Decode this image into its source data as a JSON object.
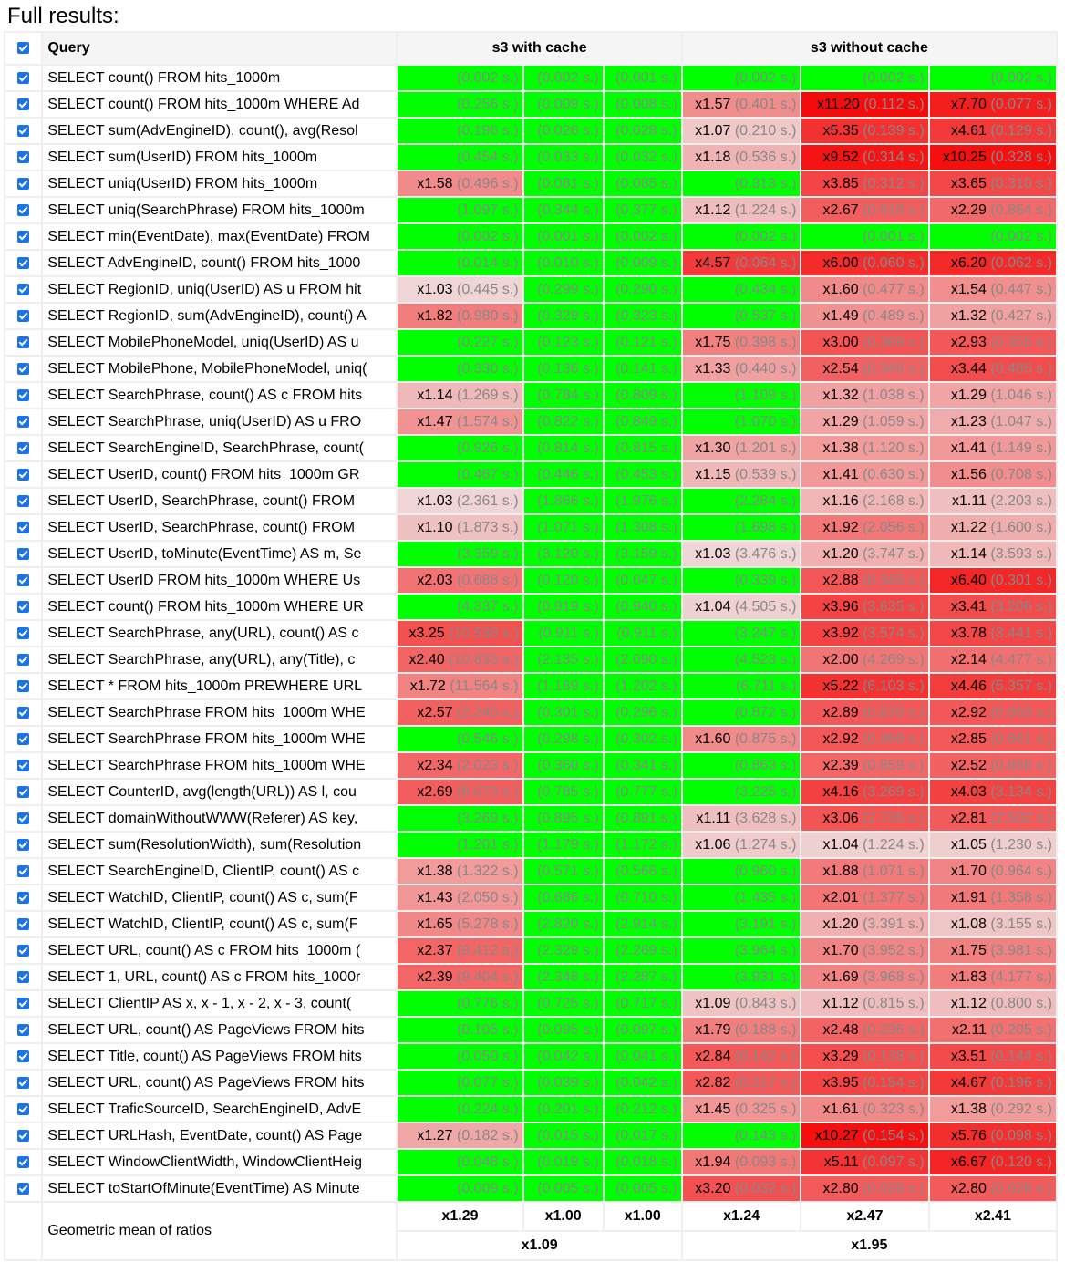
{
  "title": "Full results:",
  "header": {
    "query": "Query",
    "group1": "s3 with cache",
    "group2": "s3 without cache"
  },
  "colors": {
    "best": "#00ff00",
    "worst": "#ff0000",
    "neutral": "#eeeeee",
    "checkbox": "#1a73e8"
  },
  "rows": [
    {
      "query": "SELECT count() FROM hits_1000m",
      "cells": [
        [
          "",
          "0.002"
        ],
        [
          "",
          "0.002"
        ],
        [
          "",
          "0.001"
        ],
        [
          "",
          "0.002"
        ],
        [
          "",
          "0.002"
        ],
        [
          "",
          "0.002"
        ]
      ]
    },
    {
      "query": "SELECT count() FROM hits_1000m WHERE Ad",
      "cells": [
        [
          "",
          "0.256"
        ],
        [
          "",
          "0.009"
        ],
        [
          "",
          "0.008"
        ],
        [
          "x1.57",
          "0.401"
        ],
        [
          "x11.20",
          "0.112"
        ],
        [
          "x7.70",
          "0.077"
        ]
      ]
    },
    {
      "query": "SELECT sum(AdvEngineID), count(), avg(Resol",
      "cells": [
        [
          "",
          "0.196"
        ],
        [
          "",
          "0.026"
        ],
        [
          "",
          "0.028"
        ],
        [
          "x1.07",
          "0.210"
        ],
        [
          "x5.35",
          "0.139"
        ],
        [
          "x4.61",
          "0.129"
        ]
      ]
    },
    {
      "query": "SELECT sum(UserID) FROM hits_1000m",
      "cells": [
        [
          "",
          "0.454"
        ],
        [
          "",
          "0.033"
        ],
        [
          "",
          "0.032"
        ],
        [
          "x1.18",
          "0.536"
        ],
        [
          "x9.52",
          "0.314"
        ],
        [
          "x10.25",
          "0.328"
        ]
      ]
    },
    {
      "query": "SELECT uniq(UserID) FROM hits_1000m",
      "cells": [
        [
          "x1.58",
          "0.496"
        ],
        [
          "",
          "0.081"
        ],
        [
          "",
          "0.085"
        ],
        [
          "",
          "0.313"
        ],
        [
          "x3.85",
          "0.312"
        ],
        [
          "x3.65",
          "0.310"
        ]
      ]
    },
    {
      "query": "SELECT uniq(SearchPhrase) FROM hits_1000m",
      "cells": [
        [
          "",
          "1.097"
        ],
        [
          "",
          "0.344"
        ],
        [
          "",
          "0.377"
        ],
        [
          "x1.12",
          "1.224"
        ],
        [
          "x2.67",
          "0.918"
        ],
        [
          "x2.29",
          "0.864"
        ]
      ]
    },
    {
      "query": "SELECT min(EventDate), max(EventDate) FROM",
      "cells": [
        [
          "",
          "0.002"
        ],
        [
          "",
          "0.001"
        ],
        [
          "",
          "0.002"
        ],
        [
          "",
          "0.002"
        ],
        [
          "",
          "0.001"
        ],
        [
          "",
          "0.002"
        ]
      ]
    },
    {
      "query": "SELECT AdvEngineID, count() FROM hits_1000",
      "cells": [
        [
          "",
          "0.014"
        ],
        [
          "",
          "0.010"
        ],
        [
          "",
          "0.009"
        ],
        [
          "x4.57",
          "0.064"
        ],
        [
          "x6.00",
          "0.060"
        ],
        [
          "x6.20",
          "0.062"
        ]
      ]
    },
    {
      "query": "SELECT RegionID, uniq(UserID) AS u FROM hit",
      "cells": [
        [
          "x1.03",
          "0.445"
        ],
        [
          "",
          "0.299"
        ],
        [
          "",
          "0.290"
        ],
        [
          "",
          "0.434"
        ],
        [
          "x1.60",
          "0.477"
        ],
        [
          "x1.54",
          "0.447"
        ]
      ]
    },
    {
      "query": "SELECT RegionID, sum(AdvEngineID), count() A",
      "cells": [
        [
          "x1.82",
          "0.980"
        ],
        [
          "",
          "0.329"
        ],
        [
          "",
          "0.323"
        ],
        [
          "",
          "0.537"
        ],
        [
          "x1.49",
          "0.489"
        ],
        [
          "x1.32",
          "0.427"
        ]
      ]
    },
    {
      "query": "SELECT MobilePhoneModel, uniq(UserID) AS u",
      "cells": [
        [
          "",
          "0.227"
        ],
        [
          "",
          "0.123"
        ],
        [
          "",
          "0.121"
        ],
        [
          "x1.75",
          "0.398"
        ],
        [
          "x3.00",
          "0.369"
        ],
        [
          "x2.93",
          "0.355"
        ]
      ]
    },
    {
      "query": "SELECT MobilePhone, MobilePhoneModel, uniq(",
      "cells": [
        [
          "",
          "0.330"
        ],
        [
          "",
          "0.136"
        ],
        [
          "",
          "0.141"
        ],
        [
          "x1.33",
          "0.440"
        ],
        [
          "x2.54",
          "0.346"
        ],
        [
          "x3.44",
          "0.485"
        ]
      ]
    },
    {
      "query": "SELECT SearchPhrase, count() AS c FROM hits",
      "cells": [
        [
          "x1.14",
          "1.269"
        ],
        [
          "",
          "0.784"
        ],
        [
          "",
          "0.809"
        ],
        [
          "",
          "1.109"
        ],
        [
          "x1.32",
          "1.038"
        ],
        [
          "x1.29",
          "1.046"
        ]
      ]
    },
    {
      "query": "SELECT SearchPhrase, uniq(UserID) AS u FRO",
      "cells": [
        [
          "x1.47",
          "1.574"
        ],
        [
          "",
          "0.822"
        ],
        [
          "",
          "0.849"
        ],
        [
          "",
          "1.070"
        ],
        [
          "x1.29",
          "1.059"
        ],
        [
          "x1.23",
          "1.047"
        ]
      ]
    },
    {
      "query": "SELECT SearchEngineID, SearchPhrase, count(",
      "cells": [
        [
          "",
          "0.926"
        ],
        [
          "",
          "0.814"
        ],
        [
          "",
          "0.815"
        ],
        [
          "x1.30",
          "1.201"
        ],
        [
          "x1.38",
          "1.120"
        ],
        [
          "x1.41",
          "1.149"
        ]
      ]
    },
    {
      "query": "SELECT UserID, count() FROM hits_1000m GR",
      "cells": [
        [
          "",
          "0.467"
        ],
        [
          "",
          "0.446"
        ],
        [
          "",
          "0.453"
        ],
        [
          "x1.15",
          "0.539"
        ],
        [
          "x1.41",
          "0.630"
        ],
        [
          "x1.56",
          "0.708"
        ]
      ]
    },
    {
      "query": "SELECT UserID, SearchPhrase, count() FROM",
      "cells": [
        [
          "x1.03",
          "2.361"
        ],
        [
          "",
          "1.866"
        ],
        [
          "",
          "1.976"
        ],
        [
          "",
          "2.284"
        ],
        [
          "x1.16",
          "2.168"
        ],
        [
          "x1.11",
          "2.203"
        ]
      ]
    },
    {
      "query": "SELECT UserID, SearchPhrase, count() FROM",
      "cells": [
        [
          "x1.10",
          "1.873"
        ],
        [
          "",
          "1.071"
        ],
        [
          "",
          "1.308"
        ],
        [
          "",
          "1.698"
        ],
        [
          "x1.92",
          "2.056"
        ],
        [
          "x1.22",
          "1.600"
        ]
      ]
    },
    {
      "query": "SELECT UserID, toMinute(EventTime) AS m, Se",
      "cells": [
        [
          "",
          "3.359"
        ],
        [
          "",
          "3.120"
        ],
        [
          "",
          "3.159"
        ],
        [
          "x1.03",
          "3.476"
        ],
        [
          "x1.20",
          "3.747"
        ],
        [
          "x1.14",
          "3.593"
        ]
      ]
    },
    {
      "query": "SELECT UserID FROM hits_1000m WHERE Us",
      "cells": [
        [
          "x2.03",
          "0.688"
        ],
        [
          "",
          "0.120"
        ],
        [
          "",
          "0.047"
        ],
        [
          "",
          "0.339"
        ],
        [
          "x2.88",
          "0.345"
        ],
        [
          "x6.40",
          "0.301"
        ]
      ]
    },
    {
      "query": "SELECT count() FROM hits_1000m WHERE UR",
      "cells": [
        [
          "",
          "4.337"
        ],
        [
          "",
          "0.919"
        ],
        [
          "",
          "0.940"
        ],
        [
          "x1.04",
          "4.505"
        ],
        [
          "x3.96",
          "3.635"
        ],
        [
          "x3.41",
          "3.206"
        ]
      ]
    },
    {
      "query": "SELECT SearchPhrase, any(URL), count() AS c",
      "cells": [
        [
          "x3.25",
          "10.538"
        ],
        [
          "",
          "0.911"
        ],
        [
          "",
          "0.911"
        ],
        [
          "",
          "3.247"
        ],
        [
          "x3.92",
          "3.574"
        ],
        [
          "x3.78",
          "3.441"
        ]
      ]
    },
    {
      "query": "SELECT SearchPhrase, any(URL), any(Title), c",
      "cells": [
        [
          "x2.40",
          "10.833"
        ],
        [
          "",
          "2.135"
        ],
        [
          "",
          "2.090"
        ],
        [
          "",
          "4.523"
        ],
        [
          "x2.00",
          "4.269"
        ],
        [
          "x2.14",
          "4.477"
        ]
      ]
    },
    {
      "query": "SELECT * FROM hits_1000m PREWHERE URL",
      "cells": [
        [
          "x1.72",
          "11.564"
        ],
        [
          "",
          "1.169"
        ],
        [
          "",
          "1.202"
        ],
        [
          "",
          "6.711"
        ],
        [
          "x5.22",
          "6.103"
        ],
        [
          "x4.46",
          "5.357"
        ]
      ]
    },
    {
      "query": "SELECT SearchPhrase FROM hits_1000m WHE",
      "cells": [
        [
          "x2.57",
          "2.245"
        ],
        [
          "",
          "0.301"
        ],
        [
          "",
          "0.296"
        ],
        [
          "",
          "0.872"
        ],
        [
          "x2.89",
          "0.870"
        ],
        [
          "x2.92",
          "0.863"
        ]
      ]
    },
    {
      "query": "SELECT SearchPhrase FROM hits_1000m WHE",
      "cells": [
        [
          "",
          "0.546"
        ],
        [
          "",
          "0.298"
        ],
        [
          "",
          "0.302"
        ],
        [
          "x1.60",
          "0.875"
        ],
        [
          "x2.92",
          "0.869"
        ],
        [
          "x2.85",
          "0.861"
        ]
      ]
    },
    {
      "query": "SELECT SearchPhrase FROM hits_1000m WHE",
      "cells": [
        [
          "x2.34",
          "2.023"
        ],
        [
          "",
          "0.360"
        ],
        [
          "",
          "0.341"
        ],
        [
          "",
          "0.863"
        ],
        [
          "x2.39",
          "0.859"
        ],
        [
          "x2.52",
          "0.858"
        ]
      ]
    },
    {
      "query": "SELECT CounterID, avg(length(URL)) AS l, cou",
      "cells": [
        [
          "x2.69",
          "8.673"
        ],
        [
          "",
          "0.785"
        ],
        [
          "",
          "0.777"
        ],
        [
          "",
          "3.225"
        ],
        [
          "x4.16",
          "3.269"
        ],
        [
          "x4.03",
          "3.134"
        ]
      ]
    },
    {
      "query": "SELECT domainWithoutWWW(Referer) AS key,",
      "cells": [
        [
          "",
          "3.269"
        ],
        [
          "",
          "0.895"
        ],
        [
          "",
          "0.891"
        ],
        [
          "x1.11",
          "3.628"
        ],
        [
          "x3.06",
          "2.735"
        ],
        [
          "x2.81",
          "2.502"
        ]
      ]
    },
    {
      "query": "SELECT sum(ResolutionWidth), sum(Resolution",
      "cells": [
        [
          "",
          "1.201"
        ],
        [
          "",
          "1.179"
        ],
        [
          "",
          "1.172"
        ],
        [
          "x1.06",
          "1.274"
        ],
        [
          "x1.04",
          "1.224"
        ],
        [
          "x1.05",
          "1.230"
        ]
      ]
    },
    {
      "query": "SELECT SearchEngineID, ClientIP, count() AS c",
      "cells": [
        [
          "x1.38",
          "1.322"
        ],
        [
          "",
          "0.571"
        ],
        [
          "",
          "0.566"
        ],
        [
          "",
          "0.960"
        ],
        [
          "x1.88",
          "1.071"
        ],
        [
          "x1.70",
          "0.964"
        ]
      ]
    },
    {
      "query": "SELECT WatchID, ClientIP, count() AS c, sum(F",
      "cells": [
        [
          "x1.43",
          "2.050"
        ],
        [
          "",
          "0.686"
        ],
        [
          "",
          "0.710"
        ],
        [
          "",
          "1.435"
        ],
        [
          "x2.01",
          "1.377"
        ],
        [
          "x1.91",
          "1.358"
        ]
      ]
    },
    {
      "query": "SELECT WatchID, ClientIP, count() AS c, sum(F",
      "cells": [
        [
          "x1.65",
          "5.278"
        ],
        [
          "",
          "2.820"
        ],
        [
          "",
          "2.914"
        ],
        [
          "",
          "3.191"
        ],
        [
          "x1.20",
          "3.391"
        ],
        [
          "x1.08",
          "3.155"
        ]
      ]
    },
    {
      "query": "SELECT URL, count() AS c FROM hits_1000m (",
      "cells": [
        [
          "x2.37",
          "9.412"
        ],
        [
          "",
          "2.329"
        ],
        [
          "",
          "2.269"
        ],
        [
          "",
          "3.964"
        ],
        [
          "x1.70",
          "3.952"
        ],
        [
          "x1.75",
          "3.981"
        ]
      ]
    },
    {
      "query": "SELECT 1, URL, count() AS c FROM hits_1000r",
      "cells": [
        [
          "x2.39",
          "9.404"
        ],
        [
          "",
          "2.348"
        ],
        [
          "",
          "2.287"
        ],
        [
          "",
          "3.931"
        ],
        [
          "x1.69",
          "3.968"
        ],
        [
          "x1.83",
          "4.177"
        ]
      ]
    },
    {
      "query": "SELECT ClientIP AS x, x - 1, x - 2, x - 3, count(",
      "cells": [
        [
          "",
          "0.776"
        ],
        [
          "",
          "0.725"
        ],
        [
          "",
          "0.717"
        ],
        [
          "x1.09",
          "0.843"
        ],
        [
          "x1.12",
          "0.815"
        ],
        [
          "x1.12",
          "0.800"
        ]
      ]
    },
    {
      "query": "SELECT URL, count() AS PageViews FROM hits",
      "cells": [
        [
          "",
          "0.105"
        ],
        [
          "",
          "0.095"
        ],
        [
          "",
          "0.097"
        ],
        [
          "x1.79",
          "0.188"
        ],
        [
          "x2.48",
          "0.236"
        ],
        [
          "x2.11",
          "0.205"
        ]
      ]
    },
    {
      "query": "SELECT Title, count() AS PageViews FROM hits",
      "cells": [
        [
          "",
          "0.050"
        ],
        [
          "",
          "0.042"
        ],
        [
          "",
          "0.041"
        ],
        [
          "x2.84",
          "0.142"
        ],
        [
          "x3.29",
          "0.138"
        ],
        [
          "x3.51",
          "0.144"
        ]
      ]
    },
    {
      "query": "SELECT URL, count() AS PageViews FROM hits",
      "cells": [
        [
          "",
          "0.077"
        ],
        [
          "",
          "0.039"
        ],
        [
          "",
          "0.042"
        ],
        [
          "x2.82",
          "0.217"
        ],
        [
          "x3.95",
          "0.154"
        ],
        [
          "x4.67",
          "0.196"
        ]
      ]
    },
    {
      "query": "SELECT TraficSourceID, SearchEngineID, AdvE",
      "cells": [
        [
          "",
          "0.224"
        ],
        [
          "",
          "0.201"
        ],
        [
          "",
          "0.212"
        ],
        [
          "x1.45",
          "0.325"
        ],
        [
          "x1.61",
          "0.323"
        ],
        [
          "x1.38",
          "0.292"
        ]
      ]
    },
    {
      "query": "SELECT URLHash, EventDate, count() AS Page",
      "cells": [
        [
          "x1.27",
          "0.182"
        ],
        [
          "",
          "0.015"
        ],
        [
          "",
          "0.017"
        ],
        [
          "",
          "0.143"
        ],
        [
          "x10.27",
          "0.154"
        ],
        [
          "x5.76",
          "0.098"
        ]
      ]
    },
    {
      "query": "SELECT WindowClientWidth, WindowClientHeig",
      "cells": [
        [
          "",
          "0.048"
        ],
        [
          "",
          "0.019"
        ],
        [
          "",
          "0.018"
        ],
        [
          "x1.94",
          "0.093"
        ],
        [
          "x5.11",
          "0.097"
        ],
        [
          "x6.67",
          "0.120"
        ]
      ]
    },
    {
      "query": "SELECT toStartOfMinute(EventTime) AS Minute",
      "cells": [
        [
          "",
          "0.009"
        ],
        [
          "",
          "0.005"
        ],
        [
          "",
          "0.005"
        ],
        [
          "x3.20",
          "0.032"
        ],
        [
          "x2.80",
          "0.028"
        ],
        [
          "x2.80",
          "0.028"
        ]
      ]
    }
  ],
  "footer": {
    "label": "Geometric mean of ratios",
    "per_column": [
      "x1.29",
      "x1.00",
      "x1.00",
      "x1.24",
      "x2.47",
      "x2.41"
    ],
    "per_group": [
      "x1.09",
      "x1.95"
    ]
  }
}
